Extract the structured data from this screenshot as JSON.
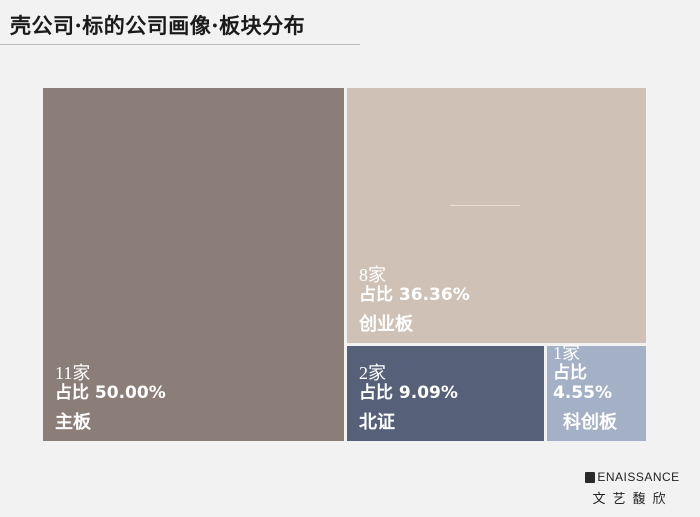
{
  "title": "壳公司·标的公司画像·板块分布",
  "chart_data": {
    "type": "treemap",
    "items": [
      {
        "name": "主板",
        "count_label": "11家",
        "share_label": "占比 50.00%",
        "count": 11,
        "share": 50.0,
        "color": "#8b7d77"
      },
      {
        "name": "创业板",
        "count_label": "8家",
        "share_label": "占比 36.36%",
        "count": 8,
        "share": 36.36,
        "color": "#cfc1b5"
      },
      {
        "name": "北证",
        "count_label": "2家",
        "share_label": "占比 9.09%",
        "count": 2,
        "share": 9.09,
        "color": "#566078"
      },
      {
        "name": "科创板",
        "count_label": "1家",
        "share_label": "占比 4.55%",
        "count": 1,
        "share": 4.55,
        "color": "#a3b0c5"
      }
    ]
  },
  "brand": {
    "top": "ENAISSANCE",
    "bottom": "文艺馥欣"
  }
}
